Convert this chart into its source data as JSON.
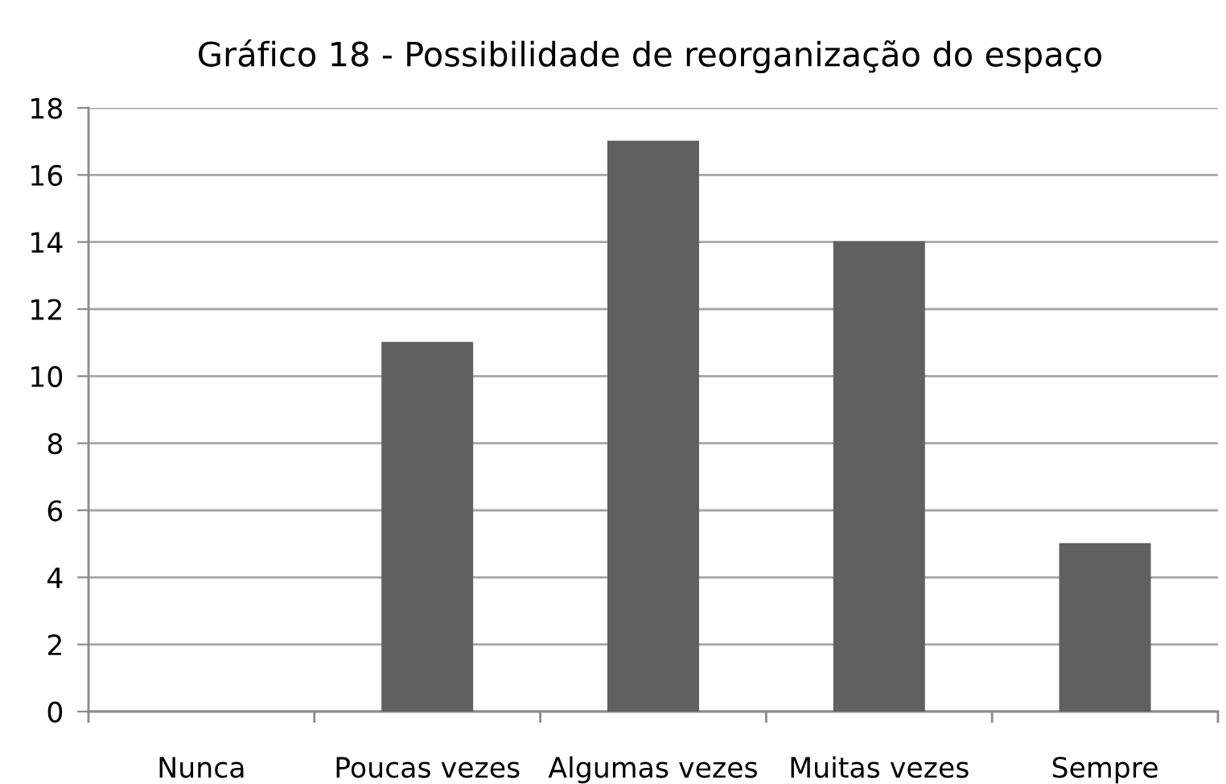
{
  "chart_data": {
    "type": "bar",
    "title": "Gráfico 18 - Possibilidade de reorganização do espaço",
    "categories": [
      "Nunca",
      "Poucas vezes",
      "Algumas vezes",
      "Muitas vezes",
      "Sempre"
    ],
    "values": [
      0,
      11,
      17,
      14,
      5
    ],
    "color": "#606060",
    "ylim": [
      0,
      18
    ],
    "yticks": [
      0,
      2,
      4,
      6,
      8,
      10,
      12,
      14,
      16,
      18
    ],
    "grid": "y",
    "legend": false
  }
}
